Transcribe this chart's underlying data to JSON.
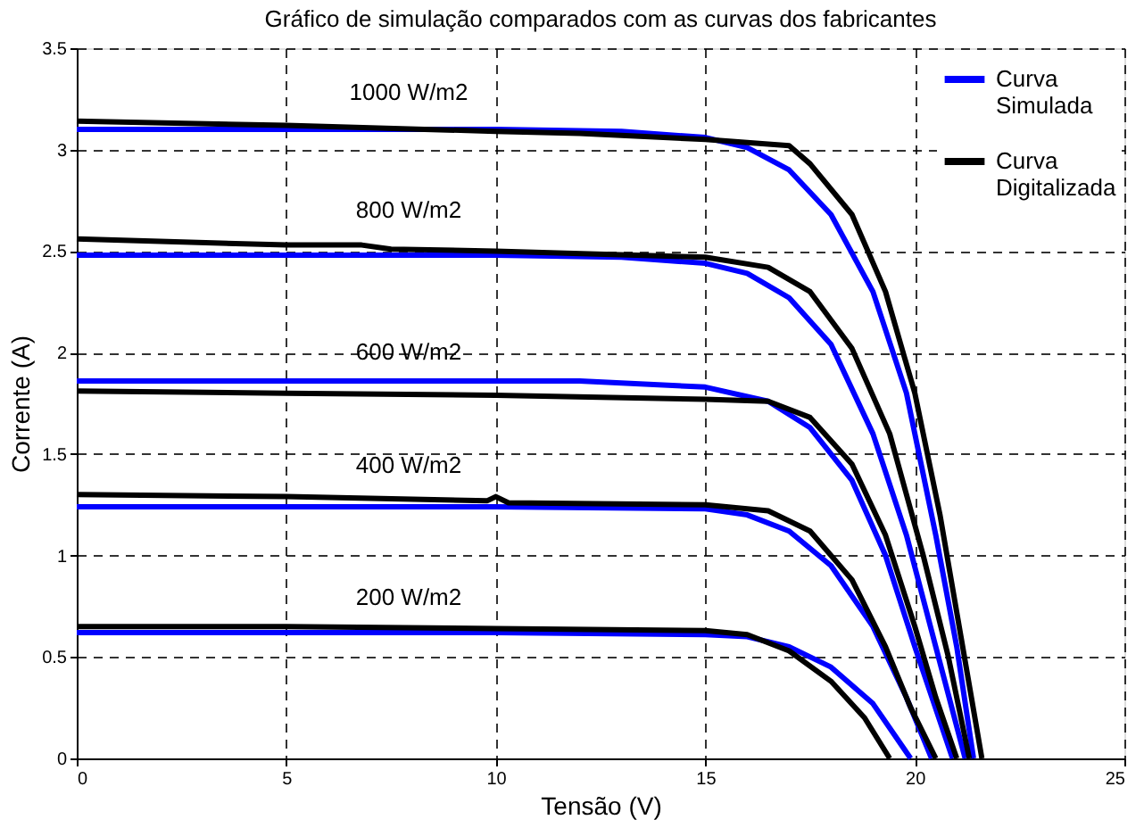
{
  "chart_data": {
    "type": "line",
    "title": "Gráfico de simulação comparados com as curvas dos fabricantes",
    "xlabel": "Tensão (V)",
    "ylabel": "Corrente (A)",
    "xlim": [
      0,
      25
    ],
    "ylim": [
      0,
      3.5
    ],
    "xticks": [
      0,
      5,
      10,
      15,
      20,
      25
    ],
    "yticks": [
      0,
      0.5,
      1,
      1.5,
      2,
      2.5,
      3,
      3.5
    ],
    "grid": true,
    "legend": "top right",
    "line_style": "solid",
    "marker": "none",
    "series": [
      {
        "name": "Curva Simulada",
        "color": "#0000ff",
        "x": [
          0,
          5,
          10,
          13,
          15,
          16,
          17,
          18,
          19,
          19.8,
          20.5,
          21,
          21.4
        ],
        "values": [
          3.1,
          3.1,
          3.1,
          3.09,
          3.06,
          3.01,
          2.9,
          2.68,
          2.3,
          1.8,
          1.1,
          0.55,
          0
        ]
      },
      {
        "name": "Curva Digitalizada",
        "color": "#000000",
        "x": [
          0,
          5,
          10,
          12,
          15,
          17,
          17.5,
          18.5,
          19.3,
          20,
          20.6,
          21.1,
          21.6
        ],
        "values": [
          3.14,
          3.12,
          3.09,
          3.08,
          3.05,
          3.02,
          2.93,
          2.68,
          2.3,
          1.8,
          1.2,
          0.6,
          0
        ]
      },
      {
        "color": "#0000ff",
        "x": [
          0,
          5,
          10,
          13,
          15,
          16,
          17,
          18,
          19,
          19.8,
          20.5,
          21.2
        ],
        "values": [
          2.48,
          2.48,
          2.48,
          2.47,
          2.44,
          2.39,
          2.27,
          2.04,
          1.6,
          1.1,
          0.55,
          0
        ]
      },
      {
        "color": "#000000",
        "x": [
          0,
          5,
          6.8,
          7.5,
          10,
          15,
          16.5,
          17.5,
          18.5,
          19.4,
          20.2,
          20.8,
          21.3
        ],
        "values": [
          2.56,
          2.53,
          2.53,
          2.51,
          2.5,
          2.47,
          2.42,
          2.3,
          2.02,
          1.6,
          1.0,
          0.5,
          0
        ]
      },
      {
        "color": "#0000ff",
        "x": [
          0,
          5,
          10,
          12,
          15,
          16.5,
          17.5,
          18.5,
          19.3,
          20,
          20.9
        ],
        "values": [
          1.86,
          1.86,
          1.86,
          1.86,
          1.83,
          1.76,
          1.63,
          1.37,
          1.0,
          0.55,
          0
        ]
      },
      {
        "color": "#000000",
        "x": [
          0,
          5,
          10,
          15,
          16.5,
          17.5,
          18.5,
          19.3,
          20,
          20.5,
          21
        ],
        "values": [
          1.81,
          1.8,
          1.79,
          1.77,
          1.76,
          1.68,
          1.45,
          1.1,
          0.65,
          0.3,
          0
        ]
      },
      {
        "color": "#0000ff",
        "x": [
          0,
          5,
          10,
          15,
          16,
          17,
          18,
          19,
          19.8,
          20.4
        ],
        "values": [
          1.24,
          1.24,
          1.24,
          1.23,
          1.2,
          1.12,
          0.95,
          0.65,
          0.3,
          0
        ]
      },
      {
        "color": "#000000",
        "x": [
          0,
          5,
          9.8,
          10,
          10.3,
          15,
          16.5,
          17.5,
          18.5,
          19.3,
          19.9,
          20.5
        ],
        "values": [
          1.3,
          1.29,
          1.27,
          1.29,
          1.26,
          1.25,
          1.22,
          1.12,
          0.88,
          0.55,
          0.25,
          0
        ]
      },
      {
        "color": "#0000ff",
        "x": [
          0,
          5,
          10,
          15,
          16,
          17,
          18,
          19,
          19.9
        ],
        "values": [
          0.62,
          0.62,
          0.62,
          0.61,
          0.6,
          0.55,
          0.45,
          0.27,
          0
        ]
      },
      {
        "color": "#000000",
        "x": [
          0,
          5,
          10,
          15,
          16,
          17,
          18,
          18.8,
          19.4
        ],
        "values": [
          0.65,
          0.65,
          0.64,
          0.63,
          0.61,
          0.53,
          0.38,
          0.2,
          0
        ]
      }
    ],
    "annotations": [
      "1000 W/m2",
      "800 W/m2",
      "600 W/m2",
      "400 W/m2",
      "200 W/m2"
    ]
  }
}
